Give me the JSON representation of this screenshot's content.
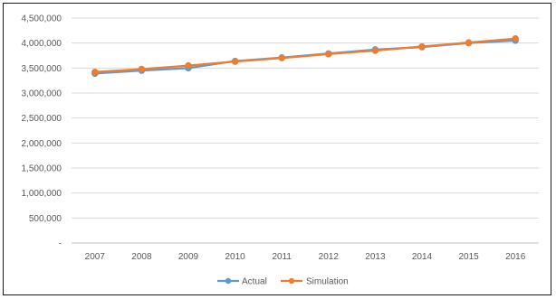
{
  "chart_data": {
    "type": "line",
    "title": "",
    "xlabel": "",
    "ylabel": "",
    "categories": [
      "2007",
      "2008",
      "2009",
      "2010",
      "2011",
      "2012",
      "2013",
      "2014",
      "2015",
      "2016"
    ],
    "ylim": [
      0,
      4500000
    ],
    "yticks": [
      0,
      500000,
      1000000,
      1500000,
      2000000,
      2500000,
      3000000,
      3500000,
      4000000,
      4500000
    ],
    "ytick_labels": [
      "-",
      "500,000",
      "1,000,000",
      "1,500,000",
      "2,000,000",
      "2,500,000",
      "3,000,000",
      "3,500,000",
      "4,000,000",
      "4,500,000"
    ],
    "grid": true,
    "legend_position": "bottom",
    "series": [
      {
        "name": "Actual",
        "color": "#5b9bd5",
        "values": [
          3390000,
          3450000,
          3500000,
          3640000,
          3710000,
          3790000,
          3870000,
          3920000,
          4000000,
          4050000
        ]
      },
      {
        "name": "Simulation",
        "color": "#ed7d31",
        "values": [
          3420000,
          3480000,
          3550000,
          3630000,
          3700000,
          3780000,
          3850000,
          3930000,
          4010000,
          4090000
        ]
      }
    ]
  }
}
